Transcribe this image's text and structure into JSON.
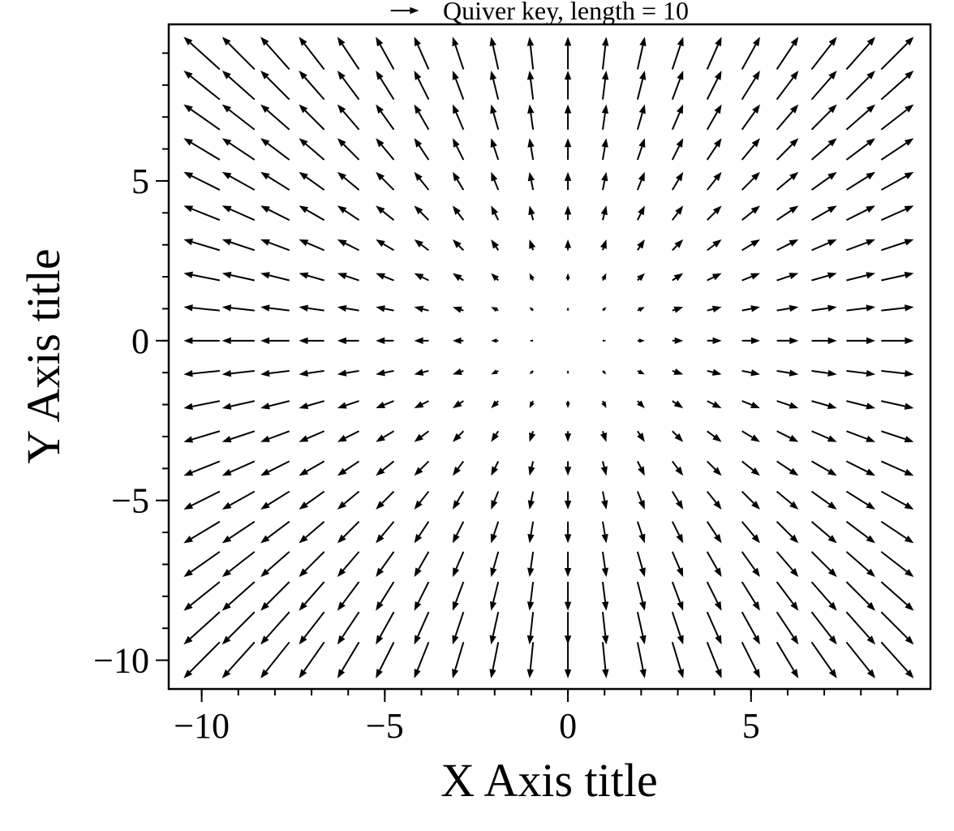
{
  "chart_data": {
    "type": "quiver",
    "title": "",
    "xlabel": "X Axis title",
    "ylabel": "Y Axis title",
    "xlim": [
      -10.9,
      9.9
    ],
    "ylim": [
      -10.9,
      9.9
    ],
    "grid": false,
    "x_ticks": [
      {
        "value": -10,
        "label": "−10"
      },
      {
        "value": -5,
        "label": "−5"
      },
      {
        "value": 0,
        "label": "0"
      },
      {
        "value": 5,
        "label": "5"
      }
    ],
    "y_ticks": [
      {
        "value": -10,
        "label": "−10"
      },
      {
        "value": -5,
        "label": "−5"
      },
      {
        "value": 0,
        "label": "0"
      },
      {
        "value": 5,
        "label": "5"
      }
    ],
    "x_minor_step": 1,
    "y_minor_step": 1,
    "vector_field": {
      "grid_x": {
        "start": -10,
        "stop": 9,
        "step": 1
      },
      "grid_y": {
        "start": -10,
        "stop": 9,
        "step": 1
      },
      "u": "x",
      "v": "y"
    },
    "quiver_key": {
      "label": "Quiver key, length = 10",
      "length": 10
    },
    "arrow_color": "#000000"
  }
}
